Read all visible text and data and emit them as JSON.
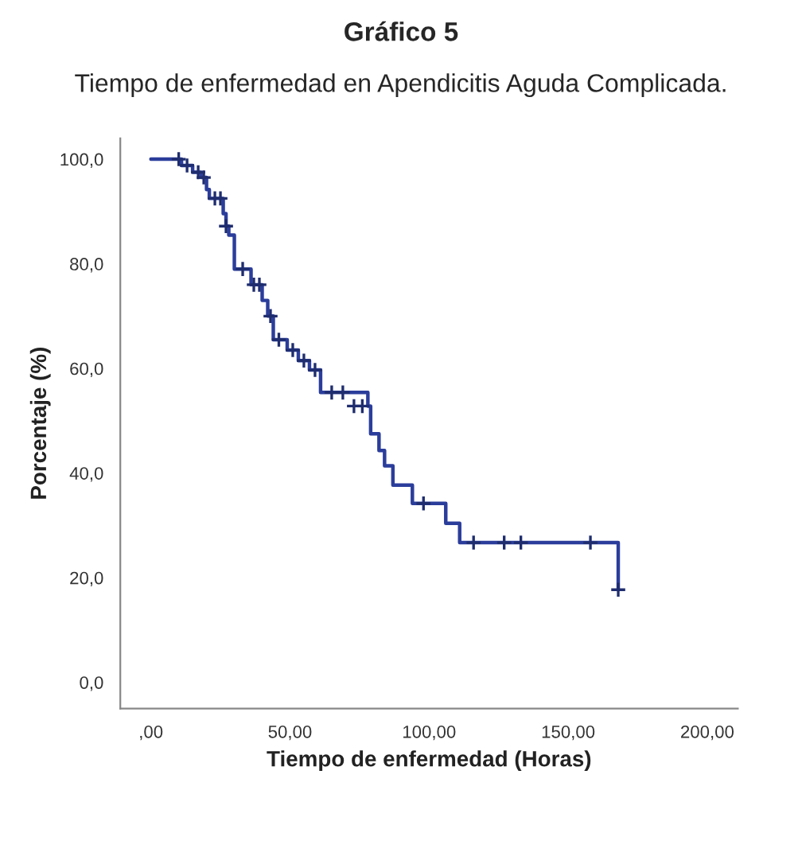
{
  "chart_data": {
    "type": "step",
    "title": "Gráfico 5",
    "subtitle": "Tiempo de enfermedad en Apendicitis Aguda Complicada.",
    "xlabel": "Tiempo de enfermedad (Horas)",
    "ylabel": "Porcentaje (%)",
    "xlim": [
      -11,
      211
    ],
    "ylim": [
      -5,
      104
    ],
    "xticks": [
      {
        "value": 0,
        "label": ",00"
      },
      {
        "value": 50,
        "label": "50,00"
      },
      {
        "value": 100,
        "label": "100,00"
      },
      {
        "value": 150,
        "label": "150,00"
      },
      {
        "value": 200,
        "label": "200,00"
      }
    ],
    "yticks": [
      {
        "value": 0,
        "label": "0,0"
      },
      {
        "value": 20,
        "label": "20,0"
      },
      {
        "value": 40,
        "label": "40,0"
      },
      {
        "value": 60,
        "label": "60,0"
      },
      {
        "value": 80,
        "label": "80,0"
      },
      {
        "value": 100,
        "label": "100,0"
      }
    ],
    "grid": false,
    "legend": false,
    "series": [
      {
        "color": "#2b3d9b",
        "line_style": "solid",
        "marker": "none",
        "x": [
          0,
          11,
          15,
          18,
          20,
          21,
          26,
          27,
          28,
          30,
          36,
          40,
          42,
          44,
          49,
          53,
          57,
          61,
          78,
          79,
          82,
          84,
          87,
          94,
          106,
          111,
          168
        ],
        "values": [
          100,
          98.8,
          97.5,
          96.5,
          94.2,
          92.5,
          89.6,
          87.2,
          85.5,
          79,
          76,
          73,
          70,
          65.5,
          63.5,
          61.5,
          59.7,
          55.4,
          52.8,
          47.5,
          44.3,
          41.4,
          37.7,
          34.2,
          30.4,
          26.7,
          17.7
        ]
      },
      {
        "type": "scatter",
        "color": "#1f2d6e",
        "marker": "cross",
        "x": [
          10,
          13,
          17,
          19,
          23,
          25,
          27,
          33,
          37,
          39,
          43,
          46,
          51,
          55,
          59,
          65,
          69,
          73,
          76,
          98,
          116,
          127,
          133,
          158,
          168
        ],
        "values": [
          100,
          98.8,
          97.5,
          96.5,
          92.5,
          92.5,
          87.2,
          79,
          76,
          76,
          70,
          65.5,
          63.5,
          61.5,
          59.7,
          55.4,
          55.4,
          52.8,
          52.8,
          34.2,
          26.7,
          26.7,
          26.7,
          26.7,
          17.7
        ]
      }
    ]
  }
}
